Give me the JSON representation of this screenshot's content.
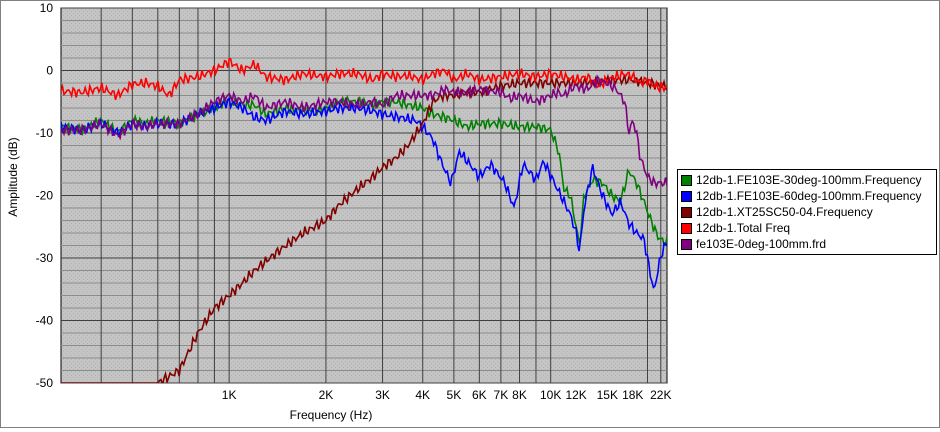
{
  "chart_data": {
    "type": "line",
    "title": "",
    "xlabel": "Frequency (Hz)",
    "ylabel": "Amplitude (dB)",
    "x_scale": "log",
    "xlim": [
      300,
      23000
    ],
    "ylim": [
      -50,
      10
    ],
    "y_ticks": [
      10,
      0,
      -10,
      -20,
      -30,
      -40,
      -50
    ],
    "x_tick_labels": [
      {
        "value": 1000,
        "label": "1K"
      },
      {
        "value": 2000,
        "label": "2K"
      },
      {
        "value": 3000,
        "label": "3K"
      },
      {
        "value": 4000,
        "label": "4K"
      },
      {
        "value": 5000,
        "label": "5K"
      },
      {
        "value": 6000,
        "label": "6K"
      },
      {
        "value": 7000,
        "label": "7K"
      },
      {
        "value": 8000,
        "label": "8K"
      },
      {
        "value": 10000,
        "label": "10K"
      },
      {
        "value": 12000,
        "label": "12K"
      },
      {
        "value": 15000,
        "label": "15K"
      },
      {
        "value": 18000,
        "label": "18K"
      },
      {
        "value": 22000,
        "label": "22K"
      }
    ],
    "grid": true,
    "legend_position": "right",
    "background": "#c0c0c0",
    "series": [
      {
        "name": "12db-1.FE103E-30deg-100mm.Frequency",
        "color": "#008000",
        "points": [
          [
            300,
            -9
          ],
          [
            350,
            -9.5
          ],
          [
            400,
            -8
          ],
          [
            450,
            -10
          ],
          [
            500,
            -8
          ],
          [
            550,
            -8.5
          ],
          [
            600,
            -8
          ],
          [
            700,
            -8.5
          ],
          [
            800,
            -7
          ],
          [
            900,
            -6
          ],
          [
            1000,
            -4.5
          ],
          [
            1100,
            -5.5
          ],
          [
            1200,
            -5.5
          ],
          [
            1300,
            -7
          ],
          [
            1500,
            -6
          ],
          [
            1700,
            -6.5
          ],
          [
            2000,
            -6
          ],
          [
            2200,
            -5
          ],
          [
            2500,
            -5
          ],
          [
            2800,
            -5.5
          ],
          [
            3000,
            -5
          ],
          [
            3300,
            -5
          ],
          [
            3600,
            -5.5
          ],
          [
            4000,
            -6
          ],
          [
            4300,
            -7
          ],
          [
            4700,
            -7.5
          ],
          [
            5000,
            -8
          ],
          [
            5500,
            -9
          ],
          [
            6000,
            -8.5
          ],
          [
            7000,
            -8.5
          ],
          [
            8000,
            -9
          ],
          [
            9000,
            -9
          ],
          [
            10000,
            -9.5
          ],
          [
            10600,
            -13
          ],
          [
            11000,
            -19
          ],
          [
            11500,
            -20
          ],
          [
            12000,
            -25
          ],
          [
            12300,
            -28
          ],
          [
            12700,
            -20
          ],
          [
            13500,
            -17.5
          ],
          [
            14500,
            -18
          ],
          [
            15500,
            -20
          ],
          [
            16500,
            -21
          ],
          [
            17500,
            -16
          ],
          [
            18500,
            -18
          ],
          [
            19500,
            -21
          ],
          [
            20500,
            -24
          ],
          [
            21500,
            -26.5
          ],
          [
            22500,
            -27.5
          ]
        ]
      },
      {
        "name": "12db-1.FE103E-60deg-100mm.Frequency",
        "color": "#0000ff",
        "points": [
          [
            300,
            -9
          ],
          [
            350,
            -9.5
          ],
          [
            400,
            -8.5
          ],
          [
            450,
            -10
          ],
          [
            500,
            -8.5
          ],
          [
            550,
            -9
          ],
          [
            600,
            -8.5
          ],
          [
            700,
            -8.5
          ],
          [
            800,
            -7
          ],
          [
            900,
            -6
          ],
          [
            1000,
            -5
          ],
          [
            1100,
            -6
          ],
          [
            1200,
            -7.5
          ],
          [
            1300,
            -8
          ],
          [
            1500,
            -6.5
          ],
          [
            1700,
            -7
          ],
          [
            2000,
            -6.5
          ],
          [
            2200,
            -6
          ],
          [
            2500,
            -6
          ],
          [
            2800,
            -6.5
          ],
          [
            3000,
            -7
          ],
          [
            3400,
            -7.5
          ],
          [
            3800,
            -8
          ],
          [
            4000,
            -9
          ],
          [
            4300,
            -11
          ],
          [
            4600,
            -15
          ],
          [
            4900,
            -18
          ],
          [
            5200,
            -13
          ],
          [
            5600,
            -15
          ],
          [
            6000,
            -17
          ],
          [
            6500,
            -15
          ],
          [
            7200,
            -18
          ],
          [
            7700,
            -22
          ],
          [
            8200,
            -15
          ],
          [
            9000,
            -17.5
          ],
          [
            9500,
            -14.5
          ],
          [
            10500,
            -19
          ],
          [
            11000,
            -21
          ],
          [
            11500,
            -23
          ],
          [
            12000,
            -26
          ],
          [
            12300,
            -29
          ],
          [
            12700,
            -22
          ],
          [
            13500,
            -15.5
          ],
          [
            14500,
            -20
          ],
          [
            15500,
            -23
          ],
          [
            16500,
            -21
          ],
          [
            17500,
            -24.5
          ],
          [
            18500,
            -26
          ],
          [
            19500,
            -27
          ],
          [
            20500,
            -33
          ],
          [
            21000,
            -35.5
          ],
          [
            21500,
            -32
          ],
          [
            22500,
            -28
          ]
        ]
      },
      {
        "name": "12db-1.XT25SC50-04.Frequency",
        "color": "#800000",
        "points": [
          [
            300,
            -50
          ],
          [
            400,
            -50
          ],
          [
            500,
            -50
          ],
          [
            600,
            -50
          ],
          [
            700,
            -48
          ],
          [
            800,
            -42
          ],
          [
            900,
            -38
          ],
          [
            1000,
            -36
          ],
          [
            1100,
            -34
          ],
          [
            1200,
            -32
          ],
          [
            1300,
            -30.5
          ],
          [
            1500,
            -28
          ],
          [
            1700,
            -26
          ],
          [
            2000,
            -24
          ],
          [
            2200,
            -21.5
          ],
          [
            2500,
            -19
          ],
          [
            2800,
            -17
          ],
          [
            3000,
            -15.5
          ],
          [
            3300,
            -14
          ],
          [
            3600,
            -12
          ],
          [
            4000,
            -8.5
          ],
          [
            4300,
            -5
          ],
          [
            4600,
            -4
          ],
          [
            5000,
            -4
          ],
          [
            5500,
            -3.5
          ],
          [
            6000,
            -3.5
          ],
          [
            7000,
            -2.5
          ],
          [
            8000,
            -2
          ],
          [
            9000,
            -2
          ],
          [
            10000,
            -2
          ],
          [
            12000,
            -2
          ],
          [
            14000,
            -1.8
          ],
          [
            16000,
            -1.5
          ],
          [
            18000,
            -1.5
          ],
          [
            20000,
            -2
          ],
          [
            22500,
            -2.5
          ]
        ]
      },
      {
        "name": "12db-1.Total Freq",
        "color": "#ff0000",
        "points": [
          [
            300,
            -3.3
          ],
          [
            350,
            -3.5
          ],
          [
            400,
            -2.8
          ],
          [
            450,
            -4
          ],
          [
            500,
            -2.2
          ],
          [
            550,
            -2
          ],
          [
            600,
            -2.5
          ],
          [
            650,
            -4
          ],
          [
            700,
            -1.5
          ],
          [
            800,
            -1
          ],
          [
            900,
            0
          ],
          [
            1000,
            1.5
          ],
          [
            1100,
            0
          ],
          [
            1200,
            1
          ],
          [
            1300,
            -1
          ],
          [
            1500,
            -1.5
          ],
          [
            1700,
            -0.5
          ],
          [
            2000,
            -1
          ],
          [
            2200,
            -0.5
          ],
          [
            2500,
            -0.5
          ],
          [
            2800,
            -1.5
          ],
          [
            3000,
            -0.5
          ],
          [
            3300,
            -1
          ],
          [
            3600,
            -0.8
          ],
          [
            4000,
            -1.5
          ],
          [
            4300,
            -0.5
          ],
          [
            4700,
            0
          ],
          [
            5000,
            -1.5
          ],
          [
            5500,
            -0.5
          ],
          [
            6000,
            -1.5
          ],
          [
            7000,
            -1
          ],
          [
            8000,
            -0.5
          ],
          [
            9000,
            -1
          ],
          [
            10000,
            -0.5
          ],
          [
            11000,
            -1
          ],
          [
            12000,
            -1.5
          ],
          [
            13000,
            -1
          ],
          [
            14000,
            -2.5
          ],
          [
            15000,
            -1.5
          ],
          [
            16000,
            -1
          ],
          [
            17000,
            -0.5
          ],
          [
            18000,
            -1
          ],
          [
            19000,
            -2
          ],
          [
            20000,
            -1.5
          ],
          [
            21000,
            -2.5
          ],
          [
            22500,
            -2.7
          ]
        ]
      },
      {
        "name": "fe103E-0deg-100mm.frd",
        "color": "#800080",
        "points": [
          [
            300,
            -9.5
          ],
          [
            350,
            -9.5
          ],
          [
            400,
            -8.5
          ],
          [
            450,
            -10.5
          ],
          [
            500,
            -8.5
          ],
          [
            550,
            -9
          ],
          [
            600,
            -8.5
          ],
          [
            700,
            -8.5
          ],
          [
            800,
            -7
          ],
          [
            900,
            -5
          ],
          [
            1000,
            -4
          ],
          [
            1100,
            -5
          ],
          [
            1200,
            -4
          ],
          [
            1300,
            -6
          ],
          [
            1500,
            -5
          ],
          [
            1700,
            -6
          ],
          [
            2000,
            -5
          ],
          [
            2200,
            -5
          ],
          [
            2500,
            -5.5
          ],
          [
            2800,
            -5
          ],
          [
            3000,
            -5.5
          ],
          [
            3300,
            -4
          ],
          [
            3600,
            -4
          ],
          [
            4000,
            -4
          ],
          [
            4300,
            -4
          ],
          [
            4700,
            -3
          ],
          [
            5000,
            -3.5
          ],
          [
            5500,
            -3.5
          ],
          [
            6000,
            -3
          ],
          [
            7000,
            -3.5
          ],
          [
            7500,
            -4.5
          ],
          [
            8000,
            -4
          ],
          [
            9000,
            -5
          ],
          [
            10000,
            -4
          ],
          [
            10500,
            -3.5
          ],
          [
            11000,
            -4
          ],
          [
            11500,
            -3
          ],
          [
            12000,
            -2.5
          ],
          [
            13000,
            -3
          ],
          [
            14000,
            -1.5
          ],
          [
            15000,
            -2
          ],
          [
            16000,
            -3
          ],
          [
            17000,
            -5
          ],
          [
            17500,
            -10
          ],
          [
            18000,
            -8
          ],
          [
            18500,
            -10
          ],
          [
            19000,
            -14
          ],
          [
            20000,
            -17
          ],
          [
            21000,
            -18
          ],
          [
            22000,
            -18
          ],
          [
            22500,
            -18
          ]
        ]
      }
    ]
  }
}
